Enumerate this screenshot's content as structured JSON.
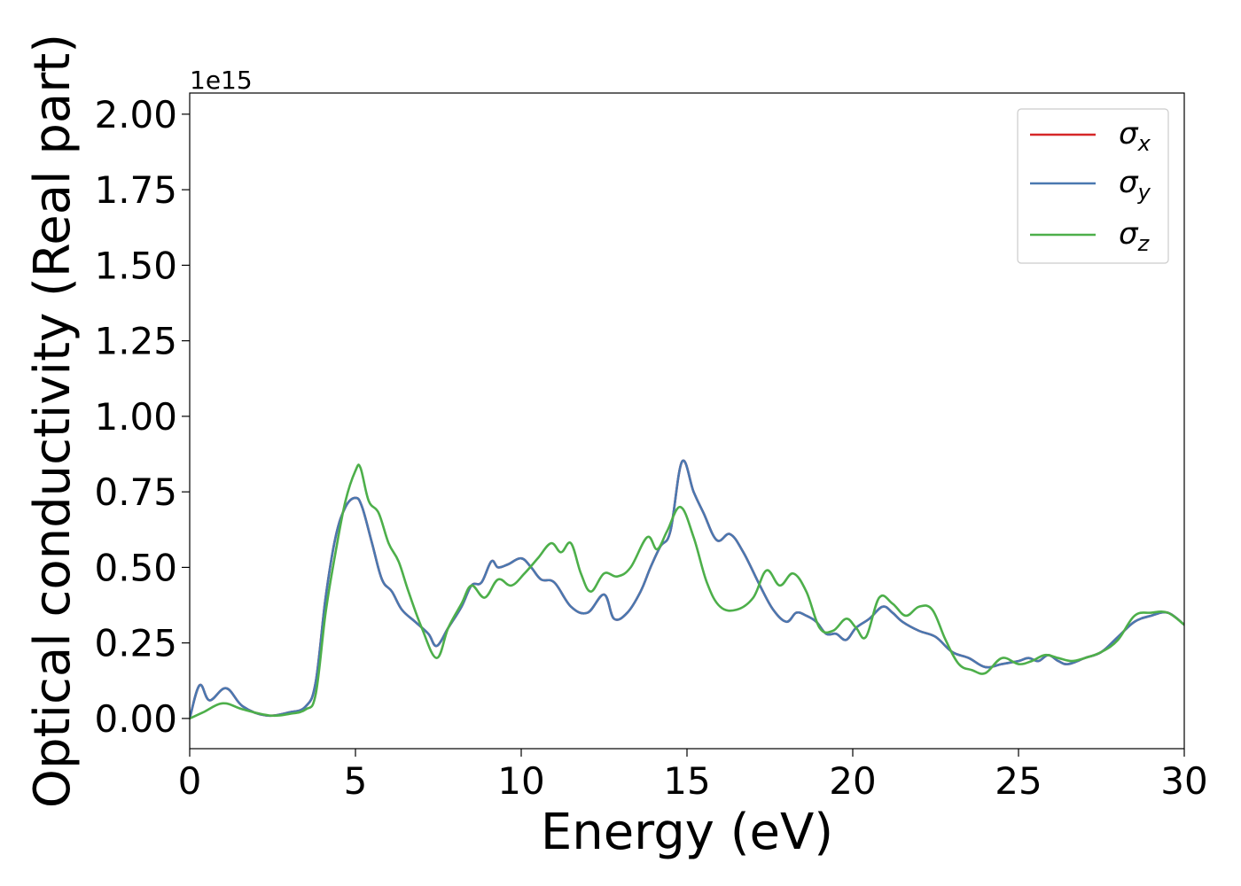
{
  "chart_data": {
    "type": "line",
    "xlabel": "Energy (eV)",
    "ylabel": "Optical conductivity (Real part)",
    "y_offset_label": "1e15",
    "xlim": [
      0,
      30
    ],
    "ylim": [
      -0.1,
      2.07
    ],
    "y_scale_factor": "1e15",
    "x_ticks": [
      0,
      5,
      10,
      15,
      20,
      25,
      30
    ],
    "x_tick_labels": [
      "0",
      "5",
      "10",
      "15",
      "20",
      "25",
      "30"
    ],
    "y_ticks": [
      0,
      0.25,
      0.5,
      0.75,
      1.0,
      1.25,
      1.5,
      1.75,
      2.0
    ],
    "y_tick_labels": [
      "0.00",
      "0.25",
      "0.50",
      "0.75",
      "1.00",
      "1.25",
      "1.50",
      "1.75",
      "2.00"
    ],
    "grid": false,
    "legend_position": "top-right",
    "series": [
      {
        "name": "σx",
        "legend_base": "σ",
        "legend_sub": "x",
        "color": "#d62728",
        "x": [
          0,
          0.3,
          0.6,
          1.1,
          1.6,
          2.3,
          3.0,
          3.5,
          3.8,
          4.1,
          4.4,
          4.7,
          5.0,
          5.2,
          5.5,
          5.8,
          6.1,
          6.4,
          6.8,
          7.2,
          7.45,
          7.8,
          8.2,
          8.5,
          8.8,
          9.1,
          9.3,
          9.6,
          10.0,
          10.3,
          10.6,
          11.0,
          11.5,
          12.0,
          12.5,
          12.8,
          13.2,
          13.6,
          13.9,
          14.2,
          14.5,
          14.85,
          15.2,
          15.5,
          15.9,
          16.3,
          16.7,
          17.2,
          17.6,
          18.0,
          18.3,
          18.6,
          18.9,
          19.2,
          19.5,
          19.8,
          20.1,
          20.5,
          20.9,
          21.2,
          21.5,
          22.0,
          22.5,
          23.0,
          23.5,
          24.0,
          24.5,
          25.0,
          25.3,
          25.6,
          25.9,
          26.2,
          26.5,
          27.0,
          27.5,
          28.0,
          28.5,
          29.0,
          29.5,
          30.0
        ],
        "y": [
          0,
          0.11,
          0.06,
          0.1,
          0.04,
          0.01,
          0.02,
          0.04,
          0.12,
          0.4,
          0.6,
          0.7,
          0.73,
          0.7,
          0.58,
          0.46,
          0.42,
          0.36,
          0.32,
          0.28,
          0.24,
          0.3,
          0.37,
          0.44,
          0.45,
          0.52,
          0.5,
          0.51,
          0.53,
          0.5,
          0.46,
          0.45,
          0.37,
          0.35,
          0.41,
          0.33,
          0.35,
          0.42,
          0.5,
          0.57,
          0.62,
          0.85,
          0.75,
          0.68,
          0.59,
          0.61,
          0.55,
          0.44,
          0.36,
          0.32,
          0.35,
          0.34,
          0.32,
          0.28,
          0.28,
          0.26,
          0.3,
          0.33,
          0.37,
          0.35,
          0.32,
          0.29,
          0.27,
          0.22,
          0.2,
          0.17,
          0.18,
          0.19,
          0.2,
          0.19,
          0.21,
          0.19,
          0.18,
          0.2,
          0.22,
          0.27,
          0.32,
          0.34,
          0.35,
          0.31
        ]
      },
      {
        "name": "σy",
        "legend_base": "σ",
        "legend_sub": "y",
        "color": "#4a78b0",
        "x": [
          0,
          0.3,
          0.6,
          1.1,
          1.6,
          2.3,
          3.0,
          3.5,
          3.8,
          4.1,
          4.4,
          4.7,
          5.0,
          5.2,
          5.5,
          5.8,
          6.1,
          6.4,
          6.8,
          7.2,
          7.45,
          7.8,
          8.2,
          8.5,
          8.8,
          9.1,
          9.3,
          9.6,
          10.0,
          10.3,
          10.6,
          11.0,
          11.5,
          12.0,
          12.5,
          12.8,
          13.2,
          13.6,
          13.9,
          14.2,
          14.5,
          14.85,
          15.2,
          15.5,
          15.9,
          16.3,
          16.7,
          17.2,
          17.6,
          18.0,
          18.3,
          18.6,
          18.9,
          19.2,
          19.5,
          19.8,
          20.1,
          20.5,
          20.9,
          21.2,
          21.5,
          22.0,
          22.5,
          23.0,
          23.5,
          24.0,
          24.5,
          25.0,
          25.3,
          25.6,
          25.9,
          26.2,
          26.5,
          27.0,
          27.5,
          28.0,
          28.5,
          29.0,
          29.5,
          30.0
        ],
        "y": [
          0,
          0.11,
          0.06,
          0.1,
          0.04,
          0.01,
          0.02,
          0.04,
          0.12,
          0.4,
          0.6,
          0.7,
          0.73,
          0.7,
          0.58,
          0.46,
          0.42,
          0.36,
          0.32,
          0.28,
          0.24,
          0.3,
          0.37,
          0.44,
          0.45,
          0.52,
          0.5,
          0.51,
          0.53,
          0.5,
          0.46,
          0.45,
          0.37,
          0.35,
          0.41,
          0.33,
          0.35,
          0.42,
          0.5,
          0.57,
          0.62,
          0.85,
          0.75,
          0.68,
          0.59,
          0.61,
          0.55,
          0.44,
          0.36,
          0.32,
          0.35,
          0.34,
          0.32,
          0.28,
          0.28,
          0.26,
          0.3,
          0.33,
          0.37,
          0.35,
          0.32,
          0.29,
          0.27,
          0.22,
          0.2,
          0.17,
          0.18,
          0.19,
          0.2,
          0.19,
          0.21,
          0.19,
          0.18,
          0.2,
          0.22,
          0.27,
          0.32,
          0.34,
          0.35,
          0.31
        ]
      },
      {
        "name": "σz",
        "legend_base": "σ",
        "legend_sub": "z",
        "color": "#4daf4a",
        "x": [
          0,
          0.4,
          1.0,
          1.6,
          2.4,
          3.0,
          3.5,
          3.8,
          4.1,
          4.4,
          4.7,
          5.0,
          5.15,
          5.4,
          5.7,
          6.0,
          6.3,
          6.6,
          7.0,
          7.45,
          7.8,
          8.2,
          8.5,
          8.9,
          9.3,
          9.7,
          10.1,
          10.5,
          10.9,
          11.2,
          11.5,
          11.8,
          12.1,
          12.5,
          12.9,
          13.3,
          13.8,
          14.1,
          14.4,
          14.8,
          15.2,
          15.6,
          16.0,
          16.5,
          17.0,
          17.4,
          17.8,
          18.2,
          18.6,
          19.0,
          19.4,
          19.8,
          20.1,
          20.4,
          20.8,
          21.2,
          21.6,
          22.0,
          22.4,
          22.8,
          23.2,
          23.6,
          24.0,
          24.5,
          25.0,
          25.4,
          25.8,
          26.2,
          26.6,
          27.0,
          27.5,
          28.0,
          28.5,
          29.0,
          29.5,
          30.0
        ],
        "y": [
          0,
          0.02,
          0.05,
          0.03,
          0.01,
          0.015,
          0.03,
          0.08,
          0.35,
          0.55,
          0.72,
          0.82,
          0.83,
          0.72,
          0.68,
          0.58,
          0.52,
          0.42,
          0.3,
          0.2,
          0.3,
          0.38,
          0.44,
          0.4,
          0.46,
          0.44,
          0.48,
          0.53,
          0.58,
          0.55,
          0.58,
          0.48,
          0.42,
          0.48,
          0.47,
          0.5,
          0.6,
          0.56,
          0.62,
          0.7,
          0.6,
          0.45,
          0.37,
          0.36,
          0.4,
          0.49,
          0.44,
          0.48,
          0.42,
          0.3,
          0.29,
          0.33,
          0.3,
          0.27,
          0.4,
          0.38,
          0.34,
          0.37,
          0.36,
          0.26,
          0.18,
          0.16,
          0.15,
          0.2,
          0.18,
          0.19,
          0.21,
          0.2,
          0.19,
          0.2,
          0.22,
          0.26,
          0.34,
          0.35,
          0.35,
          0.31
        ]
      }
    ]
  }
}
